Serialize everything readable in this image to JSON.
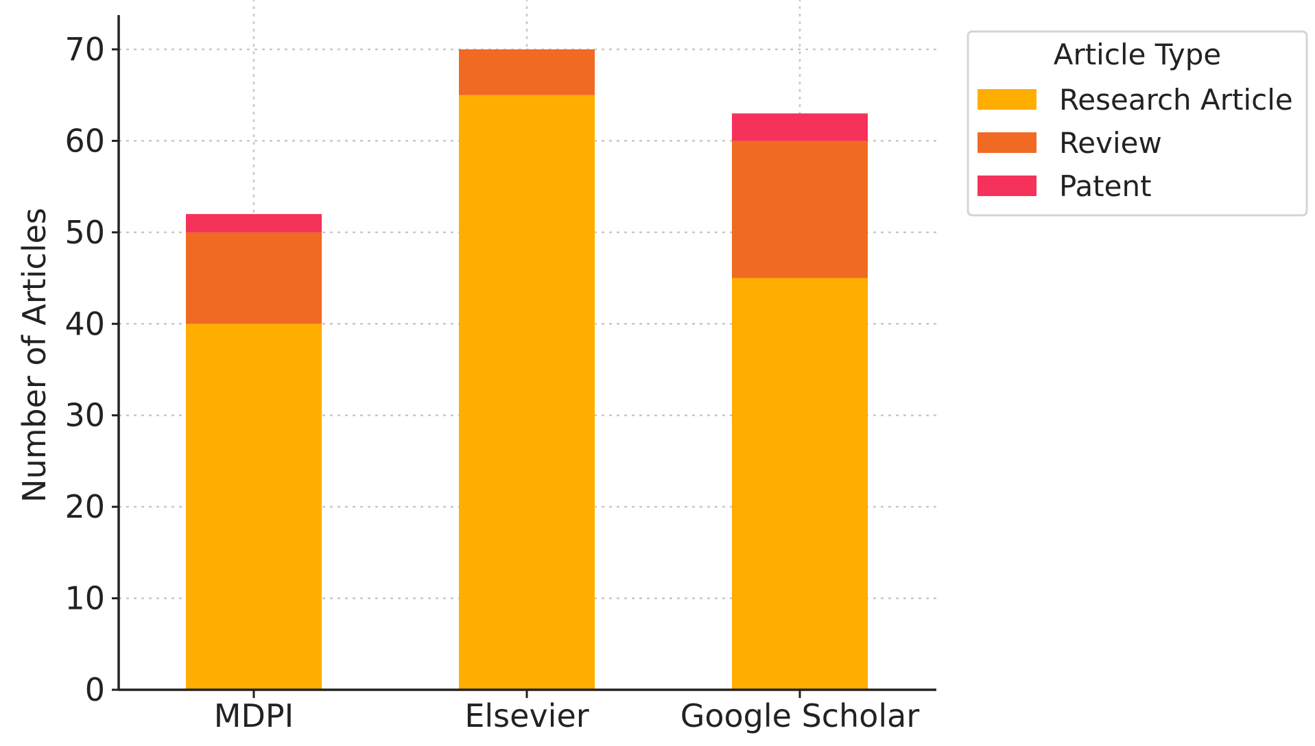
{
  "chart_data": {
    "type": "bar",
    "stacked": true,
    "title": "",
    "xlabel": "",
    "ylabel": "Number of Articles",
    "ylim": [
      0,
      73
    ],
    "yticks": [
      0,
      10,
      20,
      30,
      40,
      50,
      60,
      70
    ],
    "grid": true,
    "categories": [
      "MDPI",
      "Elsevier",
      "Google Scholar"
    ],
    "series": [
      {
        "name": "Research Article",
        "values": [
          40,
          65,
          45
        ],
        "color": "#FFAE00"
      },
      {
        "name": "Review",
        "values": [
          10,
          5,
          15
        ],
        "color": "#F06A23"
      },
      {
        "name": "Patent",
        "values": [
          2,
          0,
          3
        ],
        "color": "#F5325A"
      }
    ],
    "legend": {
      "title": "Article Type",
      "placement": "upper-right-outside"
    }
  }
}
